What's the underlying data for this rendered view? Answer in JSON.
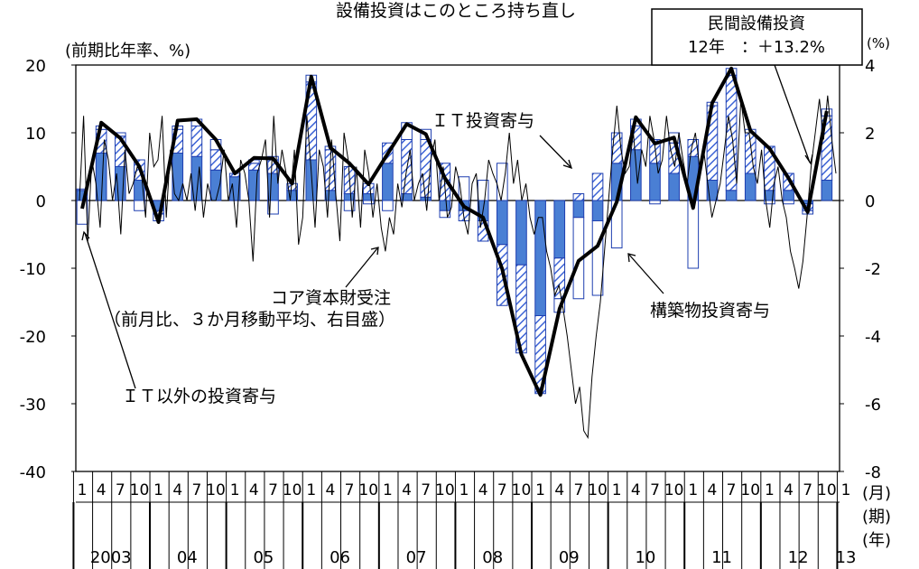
{
  "chart_data": {
    "type": "bar",
    "title": "設備投資はこのところ持ち直し",
    "y_left_label": "(前期比年率、%)",
    "y_right_label": "(%)",
    "ylim_left": [
      -40,
      20
    ],
    "ylim_right": [
      -8,
      4
    ],
    "yticks_left": [
      "20",
      "10",
      "0",
      "-10",
      "-20",
      "-30",
      "-40"
    ],
    "yticks_right": [
      "4",
      "2",
      "0",
      "-2",
      "-4",
      "-6",
      "-8"
    ],
    "xlabel_month": "(月)",
    "xlabel_quarter": "(期)",
    "xlabel_year": "(年)",
    "quarters": [
      "1",
      "4",
      "7",
      "10",
      "1",
      "4",
      "7",
      "10",
      "1",
      "4",
      "7",
      "10",
      "1",
      "4",
      "7",
      "10",
      "1",
      "4",
      "7",
      "10",
      "1",
      "4",
      "7",
      "10",
      "1",
      "4",
      "7",
      "10",
      "1",
      "4",
      "7",
      "10",
      "1",
      "4",
      "7",
      "10",
      "1",
      "4",
      "7",
      "10",
      "1"
    ],
    "years": [
      "2003",
      "04",
      "05",
      "06",
      "07",
      "08",
      "09",
      "10",
      "11",
      "12",
      "13"
    ],
    "total": [
      -1.2,
      11.5,
      9.2,
      5.0,
      -3.2,
      11.8,
      12.0,
      9.0,
      4.0,
      6.3,
      6.2,
      2.5,
      18.3,
      7.8,
      5.5,
      2.4,
      6.9,
      11.3,
      9.8,
      3.3,
      -0.9,
      -2.5,
      -10.1,
      -22.7,
      -28.7,
      -16.0,
      -8.9,
      -6.7,
      -0.2,
      12.3,
      8.4,
      9.3,
      -1.1,
      14.4,
      19.5,
      10.3,
      7.7,
      3.3,
      -1.7,
      13.2
    ],
    "it": [
      0.2,
      3.5,
      4.5,
      3.0,
      -0.5,
      3.5,
      4.5,
      3.0,
      0.5,
      1.0,
      2.5,
      1.0,
      11.5,
      6.0,
      4.0,
      1.5,
      3.0,
      8.0,
      8.5,
      5.5,
      -1.5,
      -3.0,
      -9.0,
      -13.0,
      -11.5,
      -6.0,
      1.0,
      4.0,
      4.5,
      3.5,
      3.5,
      4.5,
      2.5,
      11.0,
      17.0,
      6.0,
      6.5,
      2.5,
      -1.0,
      9.5
    ],
    "non_it": [
      1.5,
      7.0,
      5.0,
      3.0,
      -1.5,
      7.0,
      6.5,
      4.5,
      3.5,
      4.5,
      4.0,
      1.5,
      6.0,
      1.5,
      1.0,
      1.0,
      5.5,
      1.0,
      0.5,
      -1.5,
      -1.5,
      -3.0,
      -6.5,
      -9.5,
      -17.0,
      -8.5,
      -2.5,
      -3.0,
      5.5,
      7.5,
      5.5,
      4.0,
      6.5,
      3.0,
      1.5,
      4.0,
      1.5,
      1.5,
      -0.5,
      3.0
    ],
    "construction": [
      -3.5,
      0.5,
      0.5,
      -1.5,
      -1.0,
      0.5,
      1.0,
      1.5,
      0.0,
      0.5,
      -2.0,
      0.0,
      1.0,
      0.5,
      -1.5,
      -0.5,
      -1.5,
      2.5,
      1.5,
      -1.0,
      3.5,
      3.0,
      5.5,
      0.0,
      0.0,
      -2.0,
      -12.0,
      -11.0,
      -7.0,
      1.0,
      -0.5,
      1.5,
      -10.0,
      0.5,
      1.0,
      0.5,
      -0.5,
      -0.5,
      -0.5,
      1.0
    ],
    "core_orders": [
      0.0,
      2.5,
      -1.2,
      1.2,
      0.5,
      -0.8,
      1.8,
      1.2,
      0.0,
      0.8,
      -1.0,
      1.5,
      0.2,
      0.5,
      1.0,
      0.8,
      -0.5,
      2.0,
      1.0,
      1.2,
      2.5,
      -0.5,
      1.5,
      0.2,
      0.0,
      0.5,
      0.0,
      0.8,
      -0.3,
      1.0,
      -0.5,
      0.5,
      0.0,
      0.0,
      0.5,
      1.5,
      0.0,
      0.5,
      -0.8,
      1.2,
      0.8,
      0.0,
      -1.8,
      0.8,
      1.2,
      1.8,
      -0.5,
      2.5,
      0.5,
      1.5,
      0.8,
      0.0,
      1.5,
      -1.3,
      -0.5,
      2.5,
      1.0,
      -0.8,
      1.5,
      1.0,
      -0.5,
      1.8,
      0.2,
      -1.2,
      2.0,
      1.2,
      -0.5,
      1.0,
      -0.8,
      1.5,
      0.8,
      -0.5,
      0.5,
      -0.8,
      -1.5,
      -0.5,
      -1.0,
      0.5,
      -0.2,
      0.8,
      1.5,
      0.0,
      0.5,
      0.8,
      -0.3,
      1.2,
      1.8,
      0.0,
      1.0,
      -0.5,
      -0.2,
      1.0,
      0.5,
      -0.5,
      -1.0,
      0.5,
      0.8,
      -0.8,
      0.0,
      1.2,
      0.8,
      0.5,
      0.0,
      0.8,
      2.0,
      0.5,
      1.2,
      0.0,
      0.5,
      -0.5,
      -1.0,
      -0.5,
      -0.5,
      -1.5,
      -2.0,
      -2.8,
      -2.5,
      -3.2,
      -4.0,
      -5.0,
      -6.0,
      -5.5,
      -6.8,
      -7.0,
      -5.2,
      -4.0,
      -3.0,
      -1.5,
      0.0,
      1.5,
      2.8,
      1.5,
      0.8,
      1.0,
      2.0,
      0.5,
      1.5,
      1.0,
      2.5,
      1.8,
      0.8,
      1.2,
      2.5,
      1.5,
      1.0,
      2.0,
      1.2,
      0.5,
      1.5,
      2.0,
      1.0,
      1.5,
      0.5,
      -0.5,
      0.0,
      0.5,
      1.5,
      2.5,
      1.8,
      0.5,
      3.0,
      2.0,
      2.0,
      1.0,
      0.5,
      1.5,
      0.0,
      -0.8,
      0.5,
      1.0,
      0.0,
      -0.5,
      -1.5,
      -2.0,
      -2.6,
      -1.8,
      -0.5,
      1.0,
      2.0,
      3.0,
      1.8,
      3.1,
      1.8,
      0.8
    ],
    "annotations": {
      "it_label": "ＩＴ投資寄与",
      "core_label_1": "コア資本財受注",
      "core_label_2": "（前月比、３か月移動平均、右目盛）",
      "construction_label": "構築物投資寄与",
      "non_it_label": "ＩＴ以外の投資寄与",
      "box_title": "民間設備投資",
      "box_value": "12年　：＋13.2%"
    },
    "colors": {
      "bar_blue": "#4a7fd4",
      "bar_edge": "#1e3fb0",
      "line_main": "#000000",
      "line_core": "#000000"
    },
    "grid": false
  }
}
